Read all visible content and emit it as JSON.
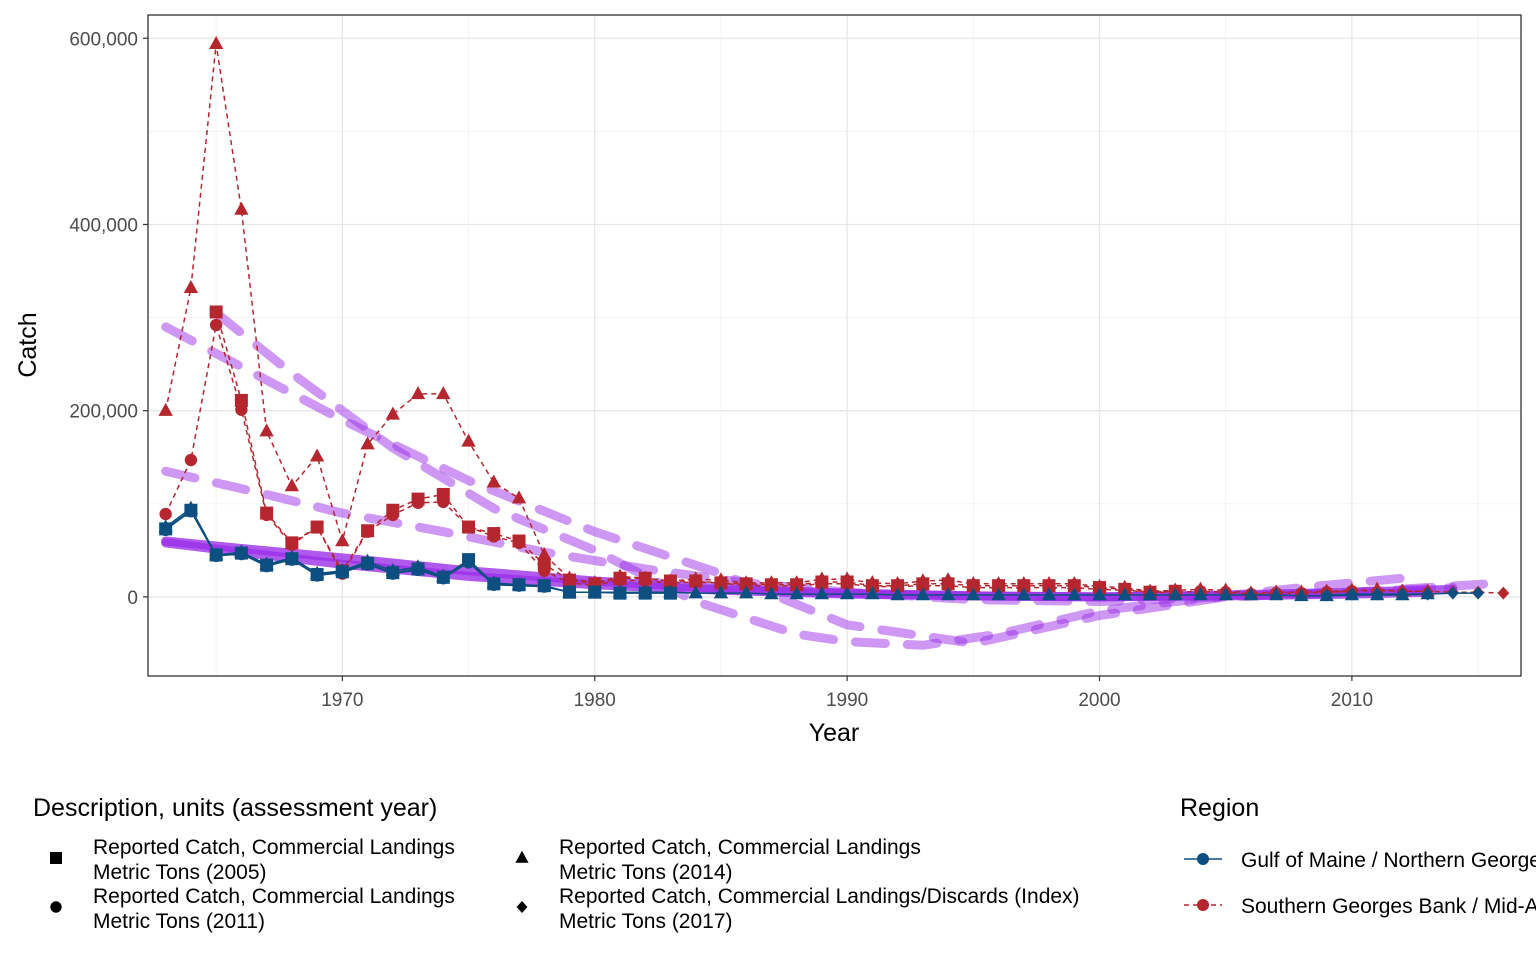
{
  "chart_data": {
    "type": "line",
    "xlabel": "Year",
    "ylabel": "Catch",
    "xlim": [
      1962.3,
      2016.7
    ],
    "ylim": [
      -85000,
      625000
    ],
    "x_ticks": [
      1970,
      1980,
      1990,
      2000,
      2010
    ],
    "x_tick_labels": [
      "1970",
      "1980",
      "1990",
      "2000",
      "2010"
    ],
    "y_ticks": [
      0,
      200000,
      400000,
      600000
    ],
    "y_tick_labels": [
      "0",
      "200,000",
      "400,000",
      "600,000"
    ],
    "grid": true,
    "legend_position": "bottom",
    "description_legend": {
      "title": "Description, units (assessment year)",
      "entries": [
        {
          "shape": "square",
          "lines": [
            "Reported Catch, Commercial Landings",
            "Metric Tons (2005)"
          ]
        },
        {
          "shape": "circle",
          "lines": [
            "Reported Catch, Commercial Landings",
            "Metric Tons (2011)"
          ]
        },
        {
          "shape": "triangle",
          "lines": [
            "Reported Catch, Commercial Landings",
            "Metric Tons (2014)"
          ]
        },
        {
          "shape": "diamond",
          "lines": [
            "Reported Catch, Commercial Landings/Discards (Index)",
            "Metric Tons (2017)"
          ]
        }
      ]
    },
    "region_legend": {
      "title": "Region",
      "entries": [
        {
          "label": "Gulf of Maine / Northern Georges Bank",
          "color": "#0d4f80",
          "dash": "solid"
        },
        {
          "label": "Southern Georges Bank / Mid-Atlantic",
          "color": "#b5262f",
          "dash": "dashed"
        }
      ]
    },
    "colors": {
      "gom": "#0d4f80",
      "sgb": "#b5262f",
      "trend": "#9b30e8"
    },
    "series": [
      {
        "region": "Southern Georges Bank / Mid-Atlantic",
        "assessment": "2014",
        "shape": "triangle",
        "x": [
          1963,
          1964,
          1965,
          1966,
          1967,
          1968,
          1969,
          1970,
          1971,
          1972,
          1973,
          1974,
          1975,
          1976,
          1977,
          1978,
          1979,
          1980,
          1981,
          1982,
          1983,
          1984,
          1985,
          1986,
          1987,
          1988,
          1989,
          1990,
          1991,
          1992,
          1993,
          1994,
          1995,
          1996,
          1997,
          1998,
          1999,
          2000,
          2001,
          2002,
          2003,
          2004,
          2005,
          2006,
          2007,
          2008,
          2009,
          2010,
          2011,
          2012,
          2013
        ],
        "y": [
          200000,
          332000,
          594000,
          416000,
          178000,
          119000,
          151000,
          60000,
          164000,
          196000,
          218000,
          218000,
          167000,
          123000,
          106000,
          45000,
          20000,
          15000,
          22000,
          20000,
          17000,
          19000,
          18000,
          15000,
          15000,
          15000,
          19000,
          19000,
          15000,
          14000,
          17000,
          18000,
          14000,
          14000,
          14000,
          14000,
          14000,
          11000,
          10000,
          6000,
          7000,
          8000,
          7000,
          4000,
          5000,
          5000,
          6000,
          7000,
          8000,
          6000,
          6000
        ]
      },
      {
        "region": "Southern Georges Bank / Mid-Atlantic",
        "assessment": "2005",
        "shape": "square",
        "x": [
          1965,
          1966,
          1967,
          1968,
          1969,
          1970,
          1971,
          1972,
          1973,
          1974,
          1975,
          1976,
          1977,
          1978,
          1979,
          1980,
          1981,
          1982,
          1983,
          1984,
          1985,
          1986,
          1987,
          1988,
          1989,
          1990,
          1991,
          1992,
          1993,
          1994,
          1995,
          1996,
          1997,
          1998,
          1999,
          2000,
          2001,
          2002,
          2003
        ],
        "y": [
          306000,
          211000,
          90000,
          58000,
          75000,
          28000,
          71000,
          93000,
          105000,
          110000,
          75000,
          68000,
          60000,
          35000,
          18000,
          14000,
          20000,
          20000,
          17000,
          17000,
          15000,
          14000,
          13000,
          13000,
          16000,
          16000,
          12000,
          12000,
          14000,
          14000,
          12000,
          12000,
          12000,
          12000,
          12000,
          10000,
          8000,
          5000,
          6000
        ]
      },
      {
        "region": "Southern Georges Bank / Mid-Atlantic",
        "assessment": "2011",
        "shape": "circle",
        "x": [
          1963,
          1964,
          1965,
          1966,
          1967,
          1968,
          1969,
          1970,
          1971,
          1972,
          1973,
          1974,
          1975,
          1976,
          1977,
          1978,
          1979,
          1980,
          1981,
          1982,
          1983,
          1984,
          1985,
          1986,
          1987,
          1988,
          1989,
          1990,
          1991,
          1992,
          1993,
          1994,
          1995,
          1996,
          1997,
          1998,
          1999,
          2000,
          2001,
          2002,
          2003,
          2004,
          2005,
          2006,
          2007,
          2008,
          2009,
          2010
        ],
        "y": [
          89000,
          147000,
          292000,
          201000,
          88000,
          56000,
          75000,
          25000,
          70000,
          88000,
          101000,
          102000,
          75000,
          65000,
          58000,
          28000,
          15000,
          12000,
          18000,
          17000,
          15000,
          16000,
          15000,
          12000,
          12000,
          12000,
          14000,
          14000,
          11000,
          11000,
          12000,
          12000,
          10000,
          10000,
          10000,
          10000,
          10000,
          8000,
          7000,
          5000,
          5000,
          6000,
          5000,
          3000,
          4000,
          4000,
          5000,
          6000
        ]
      },
      {
        "region": "Southern Georges Bank / Mid-Atlantic",
        "assessment": "2017",
        "shape": "diamond",
        "x": [
          2009,
          2010,
          2011,
          2012,
          2013,
          2014,
          2015,
          2016
        ],
        "y": [
          5000,
          6000,
          7000,
          6000,
          6000,
          5000,
          5000,
          4000
        ]
      },
      {
        "region": "Gulf of Maine / Northern Georges Bank",
        "assessment": "2014",
        "shape": "triangle",
        "x": [
          1963,
          1964,
          1965,
          1966,
          1967,
          1968,
          1969,
          1970,
          1971,
          1972,
          1973,
          1974,
          1975,
          1976,
          1977,
          1978,
          1979,
          1980,
          1981,
          1982,
          1983,
          1984,
          1985,
          1986,
          1987,
          1988,
          1989,
          1990,
          1991,
          1992,
          1993,
          1994,
          1995,
          1996,
          1997,
          1998,
          1999,
          2000,
          2001,
          2002,
          2003,
          2004,
          2005,
          2006,
          2007,
          2008,
          2009,
          2010,
          2011,
          2012,
          2013
        ],
        "y": [
          75000,
          95000,
          45000,
          48000,
          35000,
          42000,
          25000,
          28000,
          38000,
          28000,
          32000,
          22000,
          38000,
          15000,
          13000,
          12000,
          5000,
          5000,
          5000,
          5000,
          5000,
          4000,
          4000,
          4000,
          3000,
          3000,
          3000,
          3000,
          3000,
          2000,
          2000,
          2000,
          2000,
          2000,
          2000,
          2000,
          2000,
          2000,
          2000,
          2000,
          2000,
          2000,
          2000,
          2000,
          2000,
          1000,
          1000,
          2000,
          2000,
          2000,
          3000
        ]
      },
      {
        "region": "Gulf of Maine / Northern Georges Bank",
        "assessment": "2005",
        "shape": "square",
        "x": [
          1963,
          1964,
          1965,
          1966,
          1967,
          1968,
          1969,
          1970,
          1971,
          1972,
          1973,
          1974,
          1975,
          1976,
          1977,
          1978,
          1979,
          1980,
          1981,
          1982,
          1983
        ],
        "y": [
          73000,
          93000,
          45000,
          47000,
          34000,
          41000,
          24000,
          27000,
          36000,
          26000,
          30000,
          21000,
          40000,
          14000,
          13000,
          12000,
          5000,
          5000,
          4000,
          4000,
          4000
        ]
      },
      {
        "region": "Gulf of Maine / Northern Georges Bank",
        "assessment": "2011",
        "shape": "circle",
        "x": [
          1963,
          1964,
          1965,
          1966,
          1967,
          1968,
          1969,
          1970,
          1971,
          1972,
          1973,
          1974,
          1975,
          1976,
          1977,
          1978,
          1979,
          1980
        ],
        "y": [
          72000,
          92000,
          44000,
          46000,
          33000,
          40000,
          23000,
          26000,
          35000,
          25000,
          29000,
          20000,
          37000,
          13000,
          12000,
          11000,
          5000,
          5000
        ]
      },
      {
        "region": "Gulf of Maine / Northern Georges Bank",
        "assessment": "2017",
        "shape": "diamond",
        "x": [
          2009,
          2010,
          2011,
          2012,
          2013,
          2014,
          2015
        ],
        "y": [
          2000,
          3000,
          3000,
          3000,
          3000,
          4000,
          4000
        ]
      }
    ],
    "trend_lines": [
      {
        "x": [
          1963,
          1970,
          1975,
          1980,
          1985,
          1990,
          1995,
          2000,
          2005,
          2010,
          2014
        ],
        "y": [
          290000,
          190000,
          125000,
          70000,
          25000,
          -30000,
          -50000,
          -20000,
          0,
          5000,
          10000
        ],
        "dash": "dashed"
      },
      {
        "x": [
          1965,
          1968,
          1972,
          1976,
          1980,
          1984,
          1988,
          1990,
          1993,
          1996,
          2000,
          2003,
          2008,
          2012
        ],
        "y": [
          305000,
          240000,
          160000,
          95000,
          50000,
          -5000,
          -40000,
          -48000,
          -52000,
          -40000,
          -15000,
          -5000,
          10000,
          20000
        ],
        "dash": "dashed"
      },
      {
        "x": [
          1963,
          1967,
          1970,
          1974,
          1978,
          1982,
          1986,
          1990,
          1995,
          2000,
          2005,
          2010,
          2016
        ],
        "y": [
          135000,
          110000,
          90000,
          70000,
          48000,
          30000,
          15000,
          5000,
          -3000,
          -5000,
          0,
          5000,
          15000
        ],
        "dash": "dashed"
      },
      {
        "x": [
          1963,
          1966,
          1970,
          1975,
          1980,
          1985,
          1990,
          1995,
          2000,
          2005,
          2010,
          2013
        ],
        "y": [
          60000,
          52000,
          42000,
          28000,
          17000,
          9000,
          4000,
          1000,
          0,
          1000,
          3000,
          5000
        ],
        "dash": "solid"
      },
      {
        "x": [
          1963,
          1966,
          1970,
          1975,
          1980,
          1985,
          1990,
          1995,
          2000,
          2005,
          2010,
          2014
        ],
        "y": [
          58000,
          48000,
          35000,
          22000,
          13000,
          7000,
          3000,
          1000,
          0,
          2000,
          5000,
          8000
        ],
        "dash": "solid"
      }
    ]
  }
}
